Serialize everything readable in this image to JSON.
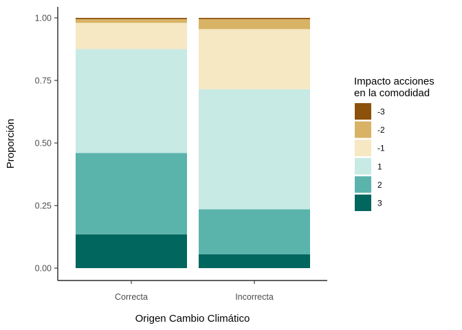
{
  "chart_data": {
    "type": "bar",
    "stacked": true,
    "xlabel": "Origen Cambio Climático",
    "ylabel": "Proporción",
    "ylim": [
      0,
      1
    ],
    "yticks": [
      "0.00",
      "0.25",
      "0.50",
      "0.75",
      "1.00"
    ],
    "ytick_values": [
      0,
      0.25,
      0.5,
      0.75,
      1.0
    ],
    "categories": [
      "Correcta",
      "Incorrecta"
    ],
    "legend": {
      "title_lines": [
        "Impacto acciones",
        "en la comodidad"
      ],
      "placement": "right"
    },
    "series": [
      {
        "name": "-3",
        "color": "#8c510a",
        "values": [
          0.005,
          0.005
        ]
      },
      {
        "name": "-2",
        "color": "#d8b365",
        "values": [
          0.015,
          0.04
        ]
      },
      {
        "name": "-1",
        "color": "#f6e8c3",
        "values": [
          0.105,
          0.24
        ]
      },
      {
        "name": "1",
        "color": "#c7eae5",
        "values": [
          0.415,
          0.48
        ]
      },
      {
        "name": "2",
        "color": "#5ab4ac",
        "values": [
          0.325,
          0.18
        ]
      },
      {
        "name": "3",
        "color": "#01665e",
        "values": [
          0.135,
          0.055
        ]
      }
    ],
    "grid": false
  }
}
